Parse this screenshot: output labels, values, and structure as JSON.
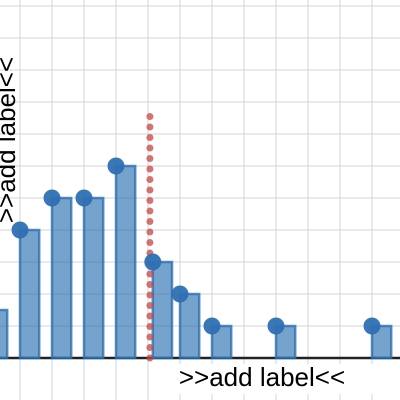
{
  "chart_data": {
    "type": "bar",
    "x_label": ">>add label<<",
    "y_label": ">>add label<<",
    "x": [
      -2,
      -1,
      0,
      1,
      2,
      3.15,
      4,
      5,
      7,
      10
    ],
    "values": [
      1.5,
      4,
      5,
      5,
      6,
      3,
      2,
      1,
      1,
      1
    ],
    "bar_width": 0.6,
    "color": "#2d70b3",
    "points": true,
    "vline": {
      "x": 3.06,
      "top": 7.7,
      "color": "#c74440",
      "style": "dotted"
    },
    "xlim": [
      -1.625,
      10.875
    ],
    "ylim": [
      -1.3125,
      11.1875
    ],
    "xticks": [
      -1,
      0,
      1,
      2,
      3,
      4,
      5,
      6,
      7,
      8,
      9,
      10
    ],
    "yticks": [
      0,
      1,
      2,
      3,
      4,
      5,
      6,
      7,
      8,
      9,
      10,
      11
    ],
    "grid": true,
    "tick_labels": false
  }
}
